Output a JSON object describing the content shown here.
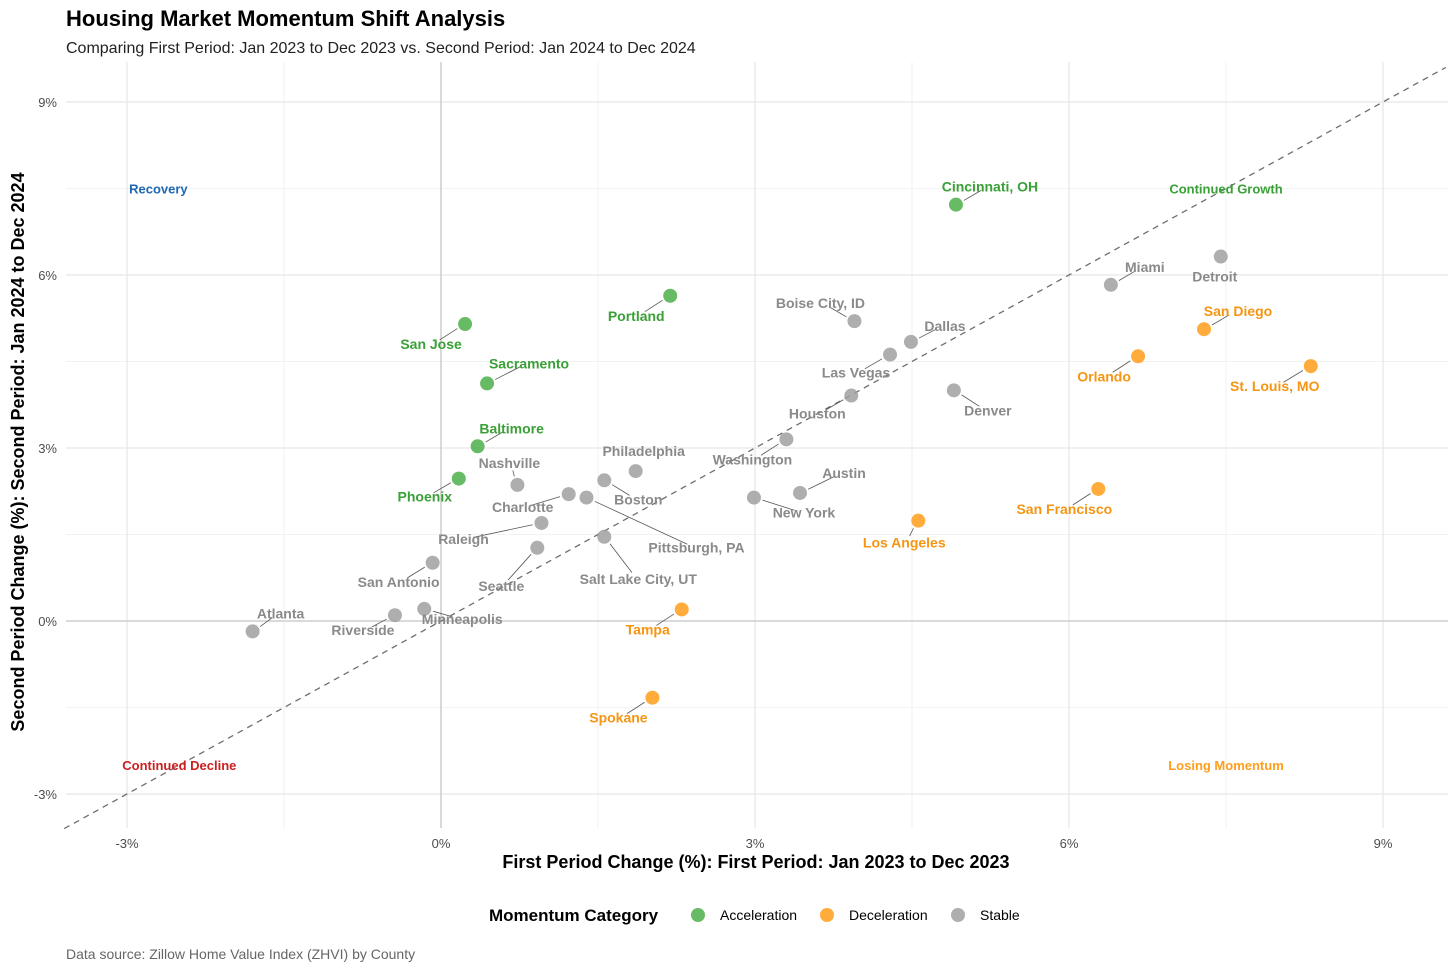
{
  "chart_data": {
    "type": "scatter",
    "title": "Housing Market Momentum Shift Analysis",
    "subtitle": "Comparing First Period: Jan 2023 to Dec 2023 vs. Second Period: Jan 2024 to Dec 2024",
    "xlabel": "First Period Change (%): First Period: Jan 2023 to Dec 2023",
    "ylabel": "Second Period Change (%): Second Period: Jan 2024 to Dec 2024",
    "xlim": [
      -3.5,
      9.6
    ],
    "ylim": [
      -3.6,
      9.6
    ],
    "x_ticks": [
      -3,
      0,
      3,
      6,
      9
    ],
    "y_ticks": [
      -3,
      0,
      3,
      6,
      9
    ],
    "x_tick_labels": [
      "-3%",
      "0%",
      "3%",
      "6%",
      "9%"
    ],
    "y_tick_labels": [
      "-3%",
      "0%",
      "3%",
      "6%",
      "9%"
    ],
    "grid": true,
    "reference_line": "y = x (dashed)",
    "legend": {
      "title": "Momentum Category",
      "position": "bottom",
      "entries": [
        {
          "name": "Acceleration",
          "color": "#4daf4a"
        },
        {
          "name": "Deceleration",
          "color": "#ff9e1b"
        },
        {
          "name": "Stable",
          "color": "#a0a0a0"
        }
      ]
    },
    "quadrant_labels": [
      {
        "text": "Recovery",
        "color": "#1f68b4",
        "x": -2.7,
        "y": 7.5
      },
      {
        "text": "Continued Growth",
        "color": "#3aa037",
        "x": 7.5,
        "y": 7.5
      },
      {
        "text": "Continued Decline",
        "color": "#cc1f1f",
        "x": -2.5,
        "y": -2.5
      },
      {
        "text": "Losing Momentum",
        "color": "#ff9e1b",
        "x": 7.5,
        "y": -2.5
      }
    ],
    "points": [
      {
        "label": "Cincinnati, OH",
        "category": "Acceleration",
        "x": 4.92,
        "y": 7.22
      },
      {
        "label": "Portland",
        "category": "Acceleration",
        "x": 2.19,
        "y": 5.64
      },
      {
        "label": "San Jose",
        "category": "Acceleration",
        "x": 0.23,
        "y": 5.15
      },
      {
        "label": "Sacramento",
        "category": "Acceleration",
        "x": 0.44,
        "y": 4.12
      },
      {
        "label": "Baltimore",
        "category": "Acceleration",
        "x": 0.35,
        "y": 3.03
      },
      {
        "label": "Phoenix",
        "category": "Acceleration",
        "x": 0.17,
        "y": 2.47
      },
      {
        "label": "Detroit",
        "category": "Stable",
        "x": 7.45,
        "y": 6.32
      },
      {
        "label": "Miami",
        "category": "Stable",
        "x": 6.4,
        "y": 5.83
      },
      {
        "label": "Boise City, ID",
        "category": "Stable",
        "x": 3.95,
        "y": 5.2
      },
      {
        "label": "Dallas",
        "category": "Stable",
        "x": 4.49,
        "y": 4.84
      },
      {
        "label": "Las Vegas",
        "category": "Stable",
        "x": 4.29,
        "y": 4.62
      },
      {
        "label": "Denver",
        "category": "Stable",
        "x": 4.9,
        "y": 4.0
      },
      {
        "label": "Houston",
        "category": "Stable",
        "x": 3.92,
        "y": 3.91
      },
      {
        "label": "Washington",
        "category": "Stable",
        "x": 3.3,
        "y": 3.15
      },
      {
        "label": "Austin",
        "category": "Stable",
        "x": 3.43,
        "y": 2.22
      },
      {
        "label": "New York",
        "category": "Stable",
        "x": 2.99,
        "y": 2.14
      },
      {
        "label": "Philadelphia",
        "category": "Stable",
        "x": 1.86,
        "y": 2.6
      },
      {
        "label": "Boston",
        "category": "Stable",
        "x": 1.56,
        "y": 2.44
      },
      {
        "label": "Nashville",
        "category": "Stable",
        "x": 0.73,
        "y": 2.36
      },
      {
        "label": "Charlotte",
        "category": "Stable",
        "x": 1.22,
        "y": 2.2
      },
      {
        "label": "Pittsburgh, PA",
        "category": "Stable",
        "x": 1.39,
        "y": 2.14
      },
      {
        "label": "Raleigh",
        "category": "Stable",
        "x": 0.96,
        "y": 1.7
      },
      {
        "label": "Salt Lake City, UT",
        "category": "Stable",
        "x": 1.56,
        "y": 1.46
      },
      {
        "label": "Seattle",
        "category": "Stable",
        "x": 0.92,
        "y": 1.27
      },
      {
        "label": "San Antonio",
        "category": "Stable",
        "x": -0.08,
        "y": 1.01
      },
      {
        "label": "Minneapolis",
        "category": "Stable",
        "x": -0.16,
        "y": 0.21
      },
      {
        "label": "Riverside",
        "category": "Stable",
        "x": -0.44,
        "y": 0.1
      },
      {
        "label": "Atlanta",
        "category": "Stable",
        "x": -1.8,
        "y": -0.18
      },
      {
        "label": "St. Louis, MO",
        "category": "Deceleration",
        "x": 8.31,
        "y": 4.42
      },
      {
        "label": "San Diego",
        "category": "Deceleration",
        "x": 7.29,
        "y": 5.06
      },
      {
        "label": "Orlando",
        "category": "Deceleration",
        "x": 6.66,
        "y": 4.59
      },
      {
        "label": "San Francisco",
        "category": "Deceleration",
        "x": 6.28,
        "y": 2.29
      },
      {
        "label": "Los Angeles",
        "category": "Deceleration",
        "x": 4.56,
        "y": 1.74
      },
      {
        "label": "Tampa",
        "category": "Deceleration",
        "x": 2.3,
        "y": 0.2
      },
      {
        "label": "Spokane",
        "category": "Deceleration",
        "x": 2.02,
        "y": -1.33
      }
    ]
  },
  "caption": "Data source: Zillow Home Value Index (ZHVI) by County"
}
